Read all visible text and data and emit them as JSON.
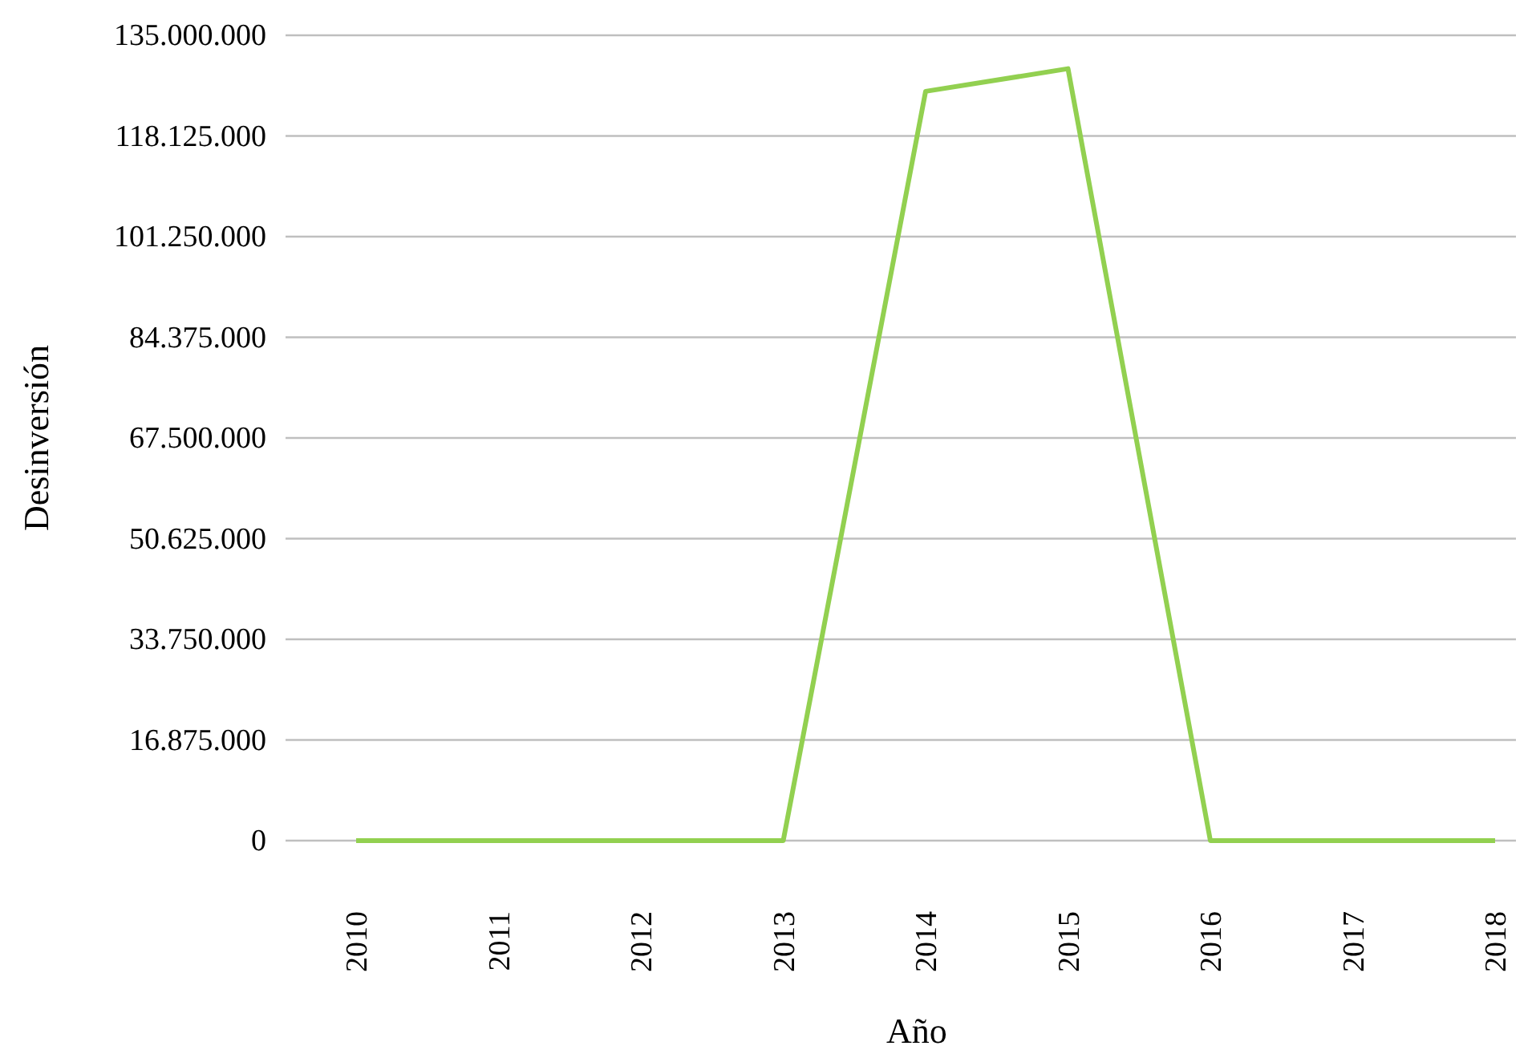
{
  "chart_data": {
    "type": "line",
    "xlabel": "Año",
    "ylabel": "Desinversión",
    "categories": [
      "2010",
      "2011",
      "2012",
      "2013",
      "2014",
      "2015",
      "2016",
      "2017",
      "2018"
    ],
    "series": [
      {
        "color": "#92d050",
        "values": [
          0,
          0,
          0,
          0,
          125600000,
          129400000,
          0,
          0,
          0
        ]
      }
    ],
    "ylim": [
      0,
      135000000
    ],
    "yticks": [
      {
        "value": 0,
        "label": "0"
      },
      {
        "value": 16875000,
        "label": "16.875.000"
      },
      {
        "value": 33750000,
        "label": "33.750.000"
      },
      {
        "value": 50625000,
        "label": "50.625.000"
      },
      {
        "value": 67500000,
        "label": "67.500.000"
      },
      {
        "value": 84375000,
        "label": "84.375.000"
      },
      {
        "value": 101250000,
        "label": "101.250.000"
      },
      {
        "value": 118125000,
        "label": "118.125.000"
      },
      {
        "value": 135000000,
        "label": "135.000.000"
      }
    ],
    "grid": "y",
    "marker": "none",
    "line_style": "solid"
  }
}
